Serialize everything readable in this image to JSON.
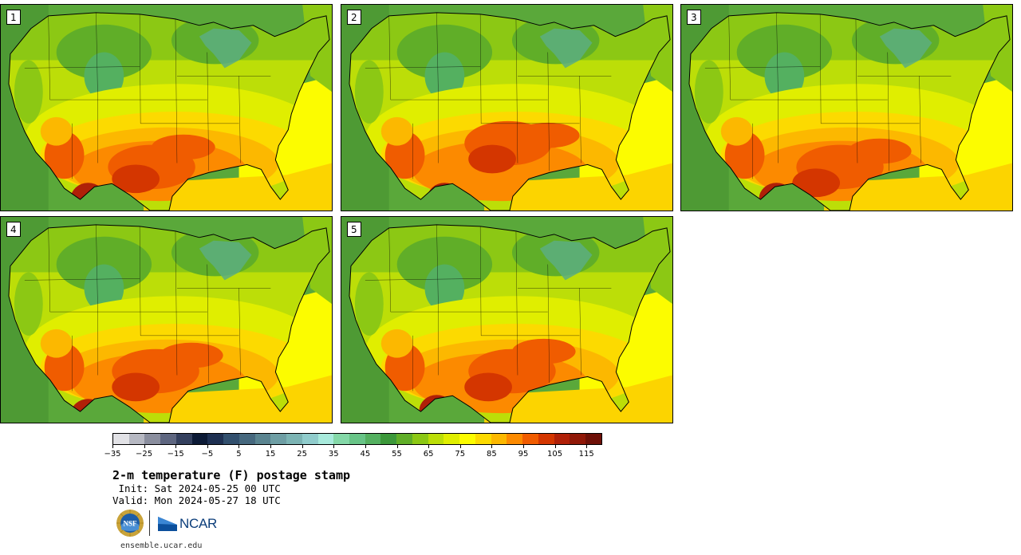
{
  "panels": [
    {
      "label": "1"
    },
    {
      "label": "2"
    },
    {
      "label": "3"
    },
    {
      "label": "4"
    },
    {
      "label": "5"
    }
  ],
  "colorbar": {
    "colors": [
      "#e2e2e6",
      "#b6b8c2",
      "#8a8e9e",
      "#5e6680",
      "#34405e",
      "#0c1a36",
      "#1e3052",
      "#32506e",
      "#46687e",
      "#5a8490",
      "#6e9ea4",
      "#7cb4b4",
      "#90cccc",
      "#a8eadc",
      "#84d8a8",
      "#68c487",
      "#54b060",
      "#3c983a",
      "#60ae28",
      "#8cc814",
      "#bcde08",
      "#e0ee00",
      "#fcfc00",
      "#fcda00",
      "#fcb800",
      "#fc8a00",
      "#f05c00",
      "#d43600",
      "#b02008",
      "#901808",
      "#6e1008"
    ],
    "tick_values": [
      "−35",
      "−25",
      "−15",
      "−5",
      "5",
      "15",
      "25",
      "35",
      "45",
      "55",
      "65",
      "75",
      "85",
      "95",
      "105",
      "115"
    ]
  },
  "title": "2-m temperature (F) postage stamp",
  "init": " Init: Sat 2024-05-25 00 UTC",
  "valid": "Valid: Mon 2024-05-27 18 UTC",
  "logos": {
    "nsf_text": "NSF",
    "ncar_text": "NCAR"
  },
  "footer": "ensemble.ucar.edu"
}
